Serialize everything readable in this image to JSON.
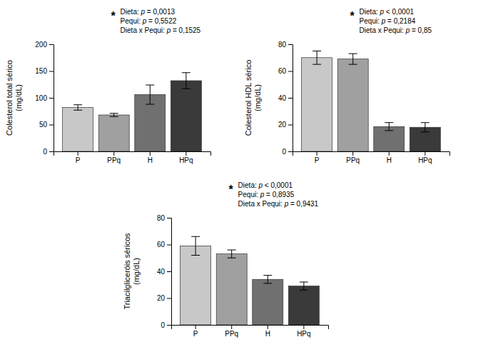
{
  "chart_data": [
    {
      "type": "bar",
      "ylabel": "Colesterol total sérico\n(mg/dL)",
      "categories": [
        "P",
        "PPq",
        "H",
        "HPq"
      ],
      "values": [
        82,
        68,
        106,
        132
      ],
      "errors": [
        5,
        3,
        18,
        15
      ],
      "colors": [
        "#c8c8c8",
        "#a0a0a0",
        "#707070",
        "#3a3a3a"
      ],
      "ylim": [
        0,
        200
      ],
      "yticks": [
        0,
        50,
        100,
        150,
        200
      ],
      "grid": false,
      "annotations": [
        "*",
        "Dieta: p = 0,0013",
        "Pequi: p = 0,5522",
        "Dieta x Pequi: p = 0,1525"
      ]
    },
    {
      "type": "bar",
      "ylabel": "Colesterol HDL sérico\n(mg/dL)",
      "categories": [
        "P",
        "PPq",
        "H",
        "HPq"
      ],
      "values": [
        70,
        69,
        18.5,
        18
      ],
      "errors": [
        5,
        4,
        3,
        3.5
      ],
      "colors": [
        "#c8c8c8",
        "#a0a0a0",
        "#707070",
        "#3a3a3a"
      ],
      "ylim": [
        0,
        80
      ],
      "yticks": [
        0,
        20,
        40,
        60,
        80
      ],
      "grid": false,
      "annotations": [
        "*",
        "Dieta: p < 0,0001",
        "Pequi: p = 0,2184",
        "Dieta x Pequi: p = 0,85"
      ]
    },
    {
      "type": "bar",
      "ylabel": "Triacilgliceróis séricos\n(mg/dL)",
      "categories": [
        "P",
        "PPq",
        "H",
        "HPq"
      ],
      "values": [
        59,
        53,
        34,
        29
      ],
      "errors": [
        7,
        3,
        3,
        3
      ],
      "colors": [
        "#c8c8c8",
        "#a0a0a0",
        "#707070",
        "#3a3a3a"
      ],
      "ylim": [
        0,
        80
      ],
      "yticks": [
        0,
        20,
        40,
        60,
        80
      ],
      "grid": false,
      "annotations": [
        "*",
        "Dieta: p < 0,0001",
        "Pequi: p = 0,8935",
        "Dieta x Pequi: p = 0,9431"
      ]
    }
  ]
}
